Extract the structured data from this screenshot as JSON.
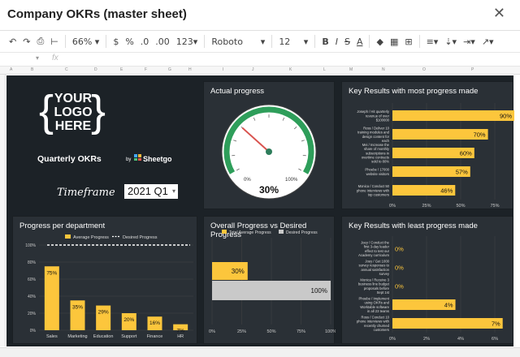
{
  "window": {
    "title": "Company OKRs (master sheet)"
  },
  "toolbar": {
    "zoom": "66%",
    "currency": "$",
    "percent": "%",
    "dec_less": ".0",
    "dec_more": ".00",
    "format": "123",
    "font": "Roboto",
    "font_size": "12",
    "bold": "B",
    "strike": "S",
    "text_color": "A"
  },
  "columns": [
    "A",
    "B",
    "C",
    "D",
    "E",
    "F",
    "G",
    "H",
    "I",
    "J",
    "K",
    "L",
    "M",
    "N",
    "O",
    "P"
  ],
  "logo": {
    "lines": [
      "YOUR",
      "LOGO",
      "HERE"
    ]
  },
  "header": {
    "title": "Quarterly OKRs",
    "by": "by",
    "brand": "Sheetgo",
    "timeframe_label": "Timeframe",
    "timeframe_value": "2021 Q1"
  },
  "gauge": {
    "title": "Actual progress",
    "value": 0.3,
    "value_label": "30%",
    "min_label": "0%",
    "max_label": "100%"
  },
  "top_kr": {
    "title": "Key Results with most progress made",
    "axis": [
      "0%",
      "25%",
      "50%",
      "75%"
    ],
    "max": 0.75,
    "items": [
      {
        "label": [
          "Joseph / Hit quarterly",
          "revenue of over",
          "$100000"
        ],
        "value": 0.9,
        "text": "90%"
      },
      {
        "label": [
          "Ross / Deliver 10",
          "training modules and",
          "design content for",
          "each"
        ],
        "value": 0.7,
        "text": "70%"
      },
      {
        "label": [
          "Mei / Increase the",
          "share of monthly",
          "subscriptions in",
          "overtime contracts",
          "sold to 80%"
        ],
        "value": 0.6,
        "text": "60%"
      },
      {
        "label": [
          "Phoebe / 17000",
          "website visitors"
        ],
        "value": 0.57,
        "text": "57%"
      },
      {
        "label": [
          "Monica / Conduct 50",
          "phone interviews with",
          "top customers"
        ],
        "value": 0.46,
        "text": "46%"
      }
    ]
  },
  "dept": {
    "title": "Progress per department",
    "legend": [
      "Average Progress",
      "Desired Progress"
    ],
    "desired": 1.0,
    "yticks": [
      "100%",
      "80%",
      "60%",
      "40%",
      "20%",
      "0%"
    ],
    "categories": [
      "Sales",
      "Marketing",
      "Education",
      "Support",
      "Finance",
      "HR"
    ],
    "values": [
      0.75,
      0.35,
      0.29,
      0.2,
      0.16,
      0.07
    ],
    "labels": [
      "75%",
      "35%",
      "29%",
      "20%",
      "16%",
      "7%"
    ]
  },
  "overall": {
    "title": "Overall Progress vs Desired Progress",
    "legend": [
      "Total Average Progress",
      "Desired Progress"
    ],
    "axis": [
      "0%",
      "25%",
      "50%",
      "75%",
      "100%"
    ],
    "actual": 0.3,
    "actual_label": "30%",
    "desired": 1.0,
    "desired_label": "100%"
  },
  "least_kr": {
    "title": "Key Results with least progress made",
    "axis": [
      "0%",
      "2%",
      "4%",
      "6%"
    ],
    "max": 0.065,
    "items": [
      {
        "label": [
          "Joey / Conduct the",
          "first 3-day leader",
          "effect to test our",
          "Academy curriculum"
        ],
        "value": 0,
        "text": "0%"
      },
      {
        "label": [
          "Joey / Get 1000",
          "survey responses to",
          "annual satisfaction",
          "survey"
        ],
        "value": 0,
        "text": "0%"
      },
      {
        "label": [
          "Monica / Receive 3",
          "business line budget",
          "proposals before",
          "Sept 1st"
        ],
        "value": 0,
        "text": "0%"
      },
      {
        "label": [
          "Phoebe / Implement",
          "using OKRs and",
          "Worktable software",
          "in all 23 teams"
        ],
        "value": 0.04,
        "text": "4%"
      },
      {
        "label": [
          "Ross / Conduct 10",
          "phone interviews with",
          "recently churned",
          "customers"
        ],
        "value": 0.07,
        "text": "7%"
      }
    ]
  },
  "colors": {
    "bg": "#1c2227",
    "panel": "#2a3036",
    "accent": "#fcc63c",
    "green": "#2e9e5a",
    "grey": "#c9c9c9"
  }
}
